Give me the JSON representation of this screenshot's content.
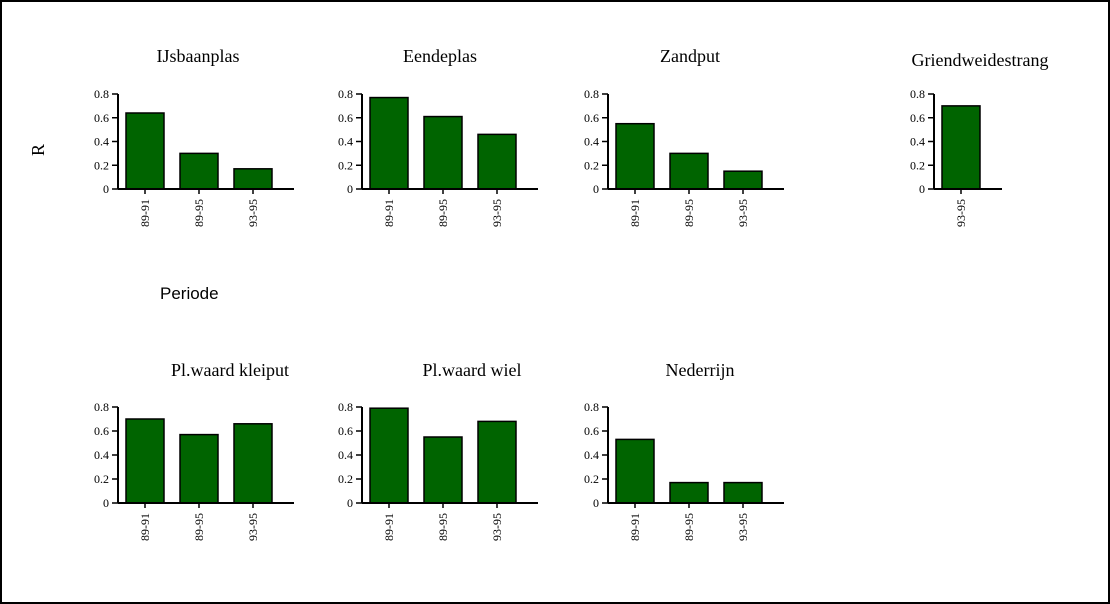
{
  "y_axis_label": "R",
  "x_axis_label": "Periode",
  "colors": {
    "bar_fill": "#006400",
    "bar_stroke": "#000000",
    "axis": "#000000"
  },
  "chart_data": [
    {
      "type": "bar",
      "title": "IJsbaanplas",
      "categories": [
        "89-91",
        "89-95",
        "93-95"
      ],
      "values": [
        0.64,
        0.3,
        0.17
      ],
      "ylim": [
        0,
        0.8
      ],
      "yticks": [
        "0",
        "0.2",
        "0.4",
        "0.6",
        "0.8"
      ]
    },
    {
      "type": "bar",
      "title": "Eendeplas",
      "categories": [
        "89-91",
        "89-95",
        "93-95"
      ],
      "values": [
        0.77,
        0.61,
        0.46
      ],
      "ylim": [
        0,
        0.8
      ],
      "yticks": [
        "0",
        "0.2",
        "0.4",
        "0.6",
        "0.8"
      ]
    },
    {
      "type": "bar",
      "title": "Zandput",
      "categories": [
        "89-91",
        "89-95",
        "93-95"
      ],
      "values": [
        0.55,
        0.3,
        0.15
      ],
      "ylim": [
        0,
        0.8
      ],
      "yticks": [
        "0",
        "0.2",
        "0.4",
        "0.6",
        "0.8"
      ]
    },
    {
      "type": "bar",
      "title": "Griendweidestrang",
      "categories": [
        "93-95"
      ],
      "values": [
        0.7
      ],
      "ylim": [
        0,
        0.8
      ],
      "yticks": [
        "0",
        "0.2",
        "0.4",
        "0.6",
        "0.8"
      ]
    },
    {
      "type": "bar",
      "title": "Pl.waard kleiput",
      "categories": [
        "89-91",
        "89-95",
        "93-95"
      ],
      "values": [
        0.7,
        0.57,
        0.66
      ],
      "ylim": [
        0,
        0.8
      ],
      "yticks": [
        "0",
        "0.2",
        "0.4",
        "0.6",
        "0.8"
      ]
    },
    {
      "type": "bar",
      "title": "Pl.waard wiel",
      "categories": [
        "89-91",
        "89-95",
        "93-95"
      ],
      "values": [
        0.79,
        0.55,
        0.68
      ],
      "ylim": [
        0,
        0.8
      ],
      "yticks": [
        "0",
        "0.2",
        "0.4",
        "0.6",
        "0.8"
      ]
    },
    {
      "type": "bar",
      "title": "Nederrijn",
      "categories": [
        "89-91",
        "89-95",
        "93-95"
      ],
      "values": [
        0.53,
        0.17,
        0.17
      ],
      "ylim": [
        0,
        0.8
      ],
      "yticks": [
        "0",
        "0.2",
        "0.4",
        "0.6",
        "0.8"
      ]
    }
  ]
}
